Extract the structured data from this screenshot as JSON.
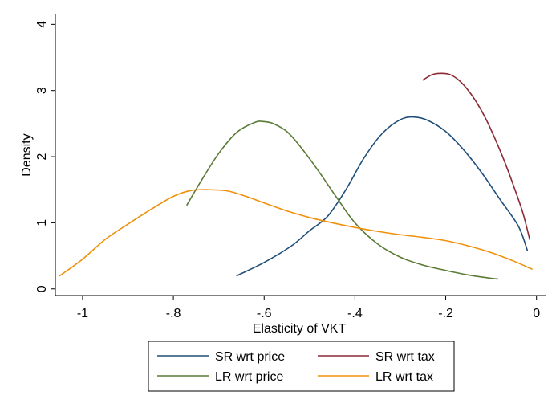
{
  "chart_data": {
    "type": "line",
    "xlabel": "Elasticity of VKT",
    "ylabel": "Density",
    "xlim": [
      -1.06,
      0.02
    ],
    "ylim": [
      -0.1,
      4.15
    ],
    "x_ticks": [
      -1,
      -0.8,
      -0.6,
      -0.4,
      -0.2,
      0
    ],
    "x_tick_labels": [
      "-1",
      "-.8",
      "-.6",
      "-.4",
      "-.2",
      "0"
    ],
    "y_ticks": [
      0,
      1,
      2,
      3,
      4
    ],
    "y_tick_labels": [
      "0",
      "1",
      "2",
      "3",
      "4"
    ],
    "grid": false,
    "legend_position": "bottom",
    "series": [
      {
        "name": "SR wrt price",
        "color": "#1f4e79",
        "x": [
          -0.66,
          -0.6,
          -0.54,
          -0.5,
          -0.46,
          -0.42,
          -0.38,
          -0.34,
          -0.3,
          -0.27,
          -0.24,
          -0.2,
          -0.16,
          -0.12,
          -0.08,
          -0.04,
          -0.02
        ],
        "y": [
          0.2,
          0.4,
          0.65,
          0.88,
          1.1,
          1.5,
          1.98,
          2.35,
          2.56,
          2.6,
          2.55,
          2.38,
          2.1,
          1.75,
          1.35,
          0.95,
          0.58
        ]
      },
      {
        "name": "SR wrt tax",
        "color": "#8b2a35",
        "x": [
          -0.25,
          -0.23,
          -0.21,
          -0.19,
          -0.17,
          -0.15,
          -0.13,
          -0.11,
          -0.09,
          -0.07,
          -0.05,
          -0.03,
          -0.015
        ],
        "y": [
          3.16,
          3.24,
          3.26,
          3.24,
          3.15,
          3.0,
          2.8,
          2.55,
          2.25,
          1.92,
          1.55,
          1.15,
          0.75
        ]
      },
      {
        "name": "LR wrt price",
        "color": "#5a7a35",
        "x": [
          -0.77,
          -0.74,
          -0.7,
          -0.66,
          -0.62,
          -0.6,
          -0.58,
          -0.55,
          -0.52,
          -0.48,
          -0.44,
          -0.4,
          -0.35,
          -0.3,
          -0.25,
          -0.2,
          -0.15,
          -0.1,
          -0.085
        ],
        "y": [
          1.27,
          1.62,
          2.05,
          2.37,
          2.52,
          2.53,
          2.5,
          2.38,
          2.15,
          1.78,
          1.38,
          1.0,
          0.68,
          0.48,
          0.36,
          0.28,
          0.21,
          0.16,
          0.15
        ]
      },
      {
        "name": "LR wrt tax",
        "color": "#f0900a",
        "x": [
          -1.05,
          -1.0,
          -0.95,
          -0.9,
          -0.85,
          -0.8,
          -0.76,
          -0.72,
          -0.68,
          -0.64,
          -0.6,
          -0.55,
          -0.5,
          -0.45,
          -0.4,
          -0.35,
          -0.3,
          -0.25,
          -0.2,
          -0.15,
          -0.1,
          -0.05,
          -0.01
        ],
        "y": [
          0.2,
          0.45,
          0.75,
          0.98,
          1.2,
          1.4,
          1.49,
          1.5,
          1.48,
          1.4,
          1.3,
          1.18,
          1.08,
          1.0,
          0.93,
          0.87,
          0.82,
          0.78,
          0.73,
          0.65,
          0.55,
          0.42,
          0.3
        ]
      }
    ]
  }
}
